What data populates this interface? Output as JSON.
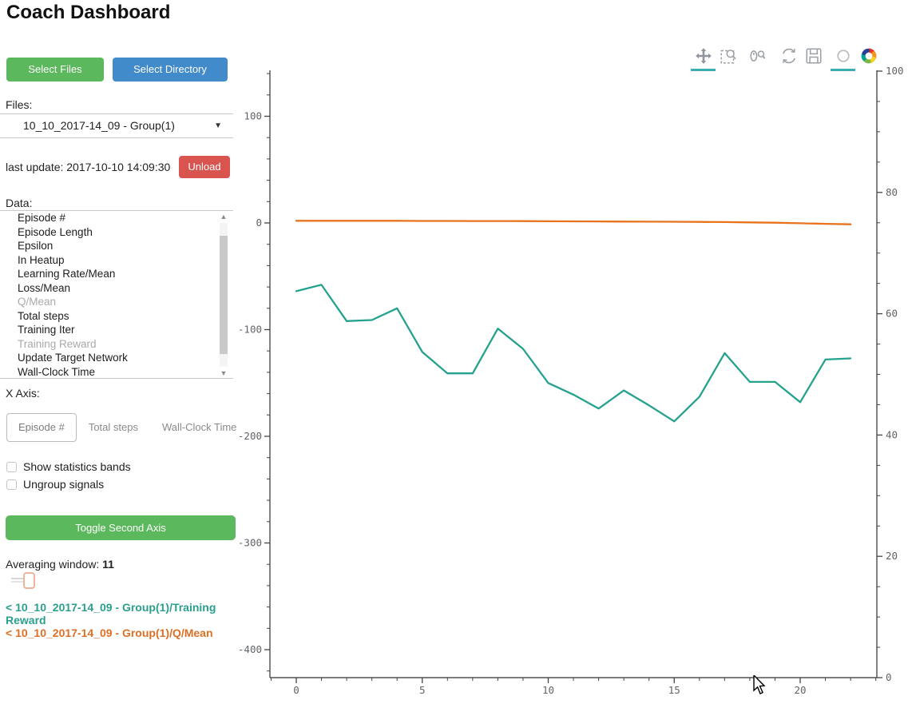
{
  "page_title": "Coach Dashboard",
  "colors": {
    "green_button": "#5cb85c",
    "blue_button": "#428bca",
    "red_button": "#d9534f",
    "teal_series": "#25a28e",
    "orange_series": "#e8731d",
    "teal_legend_text": "#2aa08c",
    "orange_legend_text": "#dd7026",
    "active_tool_underline": "#3aacb2",
    "axis_line": "#303030",
    "tick_label": "#5f6368"
  },
  "buttons": {
    "select_files": "Select Files",
    "select_directory": "Select Directory",
    "unload": "Unload",
    "toggle_second_axis": "Toggle Second Axis"
  },
  "files": {
    "label": "Files:",
    "selected": "10_10_2017-14_09 - Group(1)",
    "dropdown_arrow": "▼"
  },
  "last_update": "last update: 2017-10-10 14:09:30",
  "data_panel": {
    "label": "Data:",
    "scroll_up_icon": "▲",
    "scroll_down_icon": "▼",
    "items": [
      {
        "label": "Episode #",
        "dimmed": false
      },
      {
        "label": "Episode Length",
        "dimmed": false
      },
      {
        "label": "Epsilon",
        "dimmed": false
      },
      {
        "label": "In Heatup",
        "dimmed": false
      },
      {
        "label": "Learning Rate/Mean",
        "dimmed": false
      },
      {
        "label": "Loss/Mean",
        "dimmed": false
      },
      {
        "label": "Q/Mean",
        "dimmed": true
      },
      {
        "label": "Total steps",
        "dimmed": false
      },
      {
        "label": "Training Iter",
        "dimmed": false
      },
      {
        "label": "Training Reward",
        "dimmed": true
      },
      {
        "label": "Update Target Network",
        "dimmed": false
      },
      {
        "label": "Wall-Clock Time",
        "dimmed": false
      }
    ]
  },
  "x_axis_selector": {
    "label": "X Axis:",
    "options": [
      {
        "label": "Episode #",
        "selected": true
      },
      {
        "label": "Total steps",
        "selected": false
      },
      {
        "label": "Wall-Clock Time",
        "selected": false
      }
    ]
  },
  "checkboxes": [
    {
      "label": "Show statistics bands",
      "checked": false
    },
    {
      "label": "Ungroup signals",
      "checked": false
    }
  ],
  "averaging": {
    "label": "Averaging window:",
    "value": "11"
  },
  "legend": [
    {
      "label": "< 10_10_2017-14_09 - Group(1)/Training Reward",
      "color": "#2aa08c"
    },
    {
      "label": "< 10_10_2017-14_09 - Group(1)/Q/Mean",
      "color": "#dd7026"
    }
  ],
  "toolbar": {
    "tools": [
      {
        "name": "pan-tool-icon",
        "active": true
      },
      {
        "name": "box-zoom-icon",
        "active": false
      },
      {
        "name": "wheel-zoom-icon",
        "active": false
      },
      {
        "name": "reset-icon",
        "active": false
      },
      {
        "name": "save-icon",
        "active": false
      },
      {
        "name": "hover-tool-icon",
        "active": true
      },
      {
        "name": "bokeh-logo-icon",
        "active": false
      }
    ]
  },
  "chart_data": {
    "type": "line",
    "title": "",
    "xlabel": "",
    "ylabel": "",
    "grid": false,
    "x": [
      0,
      1,
      2,
      3,
      4,
      5,
      6,
      7,
      8,
      9,
      10,
      11,
      12,
      13,
      14,
      15,
      16,
      17,
      18,
      19,
      20,
      21,
      22
    ],
    "series": [
      {
        "name": "10_10_2017-14_09 - Group(1)/Training Reward",
        "color": "#25a28e",
        "axis": "left",
        "values": [
          -64,
          -58,
          -92,
          -91,
          -80,
          -121,
          -141,
          -141,
          -99,
          -118,
          -150,
          -161,
          -174,
          -157,
          -171,
          -186,
          -163,
          -122,
          -149,
          -149,
          -168,
          -128,
          -127
        ]
      },
      {
        "name": "10_10_2017-14_09 - Group(1)/Q/Mean",
        "color": "#e8731d",
        "axis": "left",
        "values": [
          2,
          2,
          2,
          2,
          2,
          1.9,
          1.9,
          1.8,
          1.8,
          1.7,
          1.6,
          1.5,
          1.4,
          1.3,
          1.2,
          1.1,
          1.0,
          0.8,
          0.5,
          0.2,
          -0.3,
          -0.8,
          -1.3
        ]
      }
    ],
    "x_ticks": [
      0,
      5,
      10,
      15,
      20
    ],
    "left_axis": {
      "ticks": [
        100,
        0,
        -100,
        -200,
        -300,
        -400
      ],
      "range": [
        -426,
        143
      ]
    },
    "right_axis": {
      "ticks": [
        100,
        80,
        60,
        40,
        20,
        0
      ],
      "range": [
        0,
        100
      ]
    },
    "x_range": [
      -1.05,
      23.05
    ],
    "legend_position": "left-panel"
  }
}
